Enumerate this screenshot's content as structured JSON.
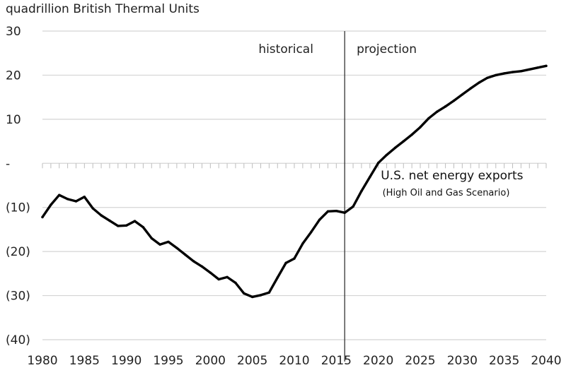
{
  "chart_data": {
    "type": "line",
    "title": "",
    "ylabel": "quadrillion British Thermal Units",
    "xlabel": "",
    "xlim": [
      1980,
      2040
    ],
    "ylim": [
      -40,
      30
    ],
    "y_ticks": [
      {
        "value": 30,
        "label": "30"
      },
      {
        "value": 20,
        "label": "20"
      },
      {
        "value": 10,
        "label": "10"
      },
      {
        "value": 0,
        "label": "-"
      },
      {
        "value": -10,
        "label": "(10)"
      },
      {
        "value": -20,
        "label": "(20)"
      },
      {
        "value": -30,
        "label": "(30)"
      },
      {
        "value": -40,
        "label": "(40)"
      }
    ],
    "x_ticks": [
      {
        "value": 1980,
        "label": "1980"
      },
      {
        "value": 1985,
        "label": "1985"
      },
      {
        "value": 1990,
        "label": "1990"
      },
      {
        "value": 1995,
        "label": "1995"
      },
      {
        "value": 2000,
        "label": "2000"
      },
      {
        "value": 2005,
        "label": "2005"
      },
      {
        "value": 2010,
        "label": "2010"
      },
      {
        "value": 2015,
        "label": "2015"
      },
      {
        "value": 2020,
        "label": "2020"
      },
      {
        "value": 2025,
        "label": "2025"
      },
      {
        "value": 2030,
        "label": "2030"
      },
      {
        "value": 2035,
        "label": "2035"
      },
      {
        "value": 2040,
        "label": "2040"
      }
    ],
    "divider_year": 2016,
    "region_labels": {
      "historical": "historical",
      "projection": "projection"
    },
    "series": [
      {
        "name": "U.S. net energy exports",
        "subtitle": "(High Oil and Gas Scenario)",
        "x": [
          1980,
          1981,
          1982,
          1983,
          1984,
          1985,
          1986,
          1987,
          1988,
          1989,
          1990,
          1991,
          1992,
          1993,
          1994,
          1995,
          1996,
          1997,
          1998,
          1999,
          2000,
          2001,
          2002,
          2003,
          2004,
          2005,
          2006,
          2007,
          2008,
          2009,
          2010,
          2011,
          2012,
          2013,
          2014,
          2015,
          2016,
          2017,
          2018,
          2019,
          2020,
          2021,
          2022,
          2023,
          2024,
          2025,
          2026,
          2027,
          2028,
          2029,
          2030,
          2031,
          2032,
          2033,
          2034,
          2035,
          2036,
          2037,
          2038,
          2039,
          2040
        ],
        "values": [
          -12.2,
          -9.4,
          -7.2,
          -8.1,
          -8.6,
          -7.6,
          -10.2,
          -11.8,
          -13.0,
          -14.2,
          -14.1,
          -13.1,
          -14.5,
          -17.0,
          -18.4,
          -17.8,
          -19.2,
          -20.7,
          -22.2,
          -23.4,
          -24.8,
          -26.3,
          -25.8,
          -27.1,
          -29.5,
          -30.3,
          -29.9,
          -29.3,
          -25.9,
          -22.6,
          -21.6,
          -18.2,
          -15.6,
          -12.8,
          -10.9,
          -10.8,
          -11.2,
          -9.8,
          -6.3,
          -3.1,
          0.1,
          1.9,
          3.5,
          5.0,
          6.5,
          8.2,
          10.2,
          11.7,
          12.9,
          14.2,
          15.6,
          17.0,
          18.3,
          19.4,
          20.0,
          20.4,
          20.7,
          20.9,
          21.3,
          21.7,
          22.1
        ]
      }
    ]
  }
}
